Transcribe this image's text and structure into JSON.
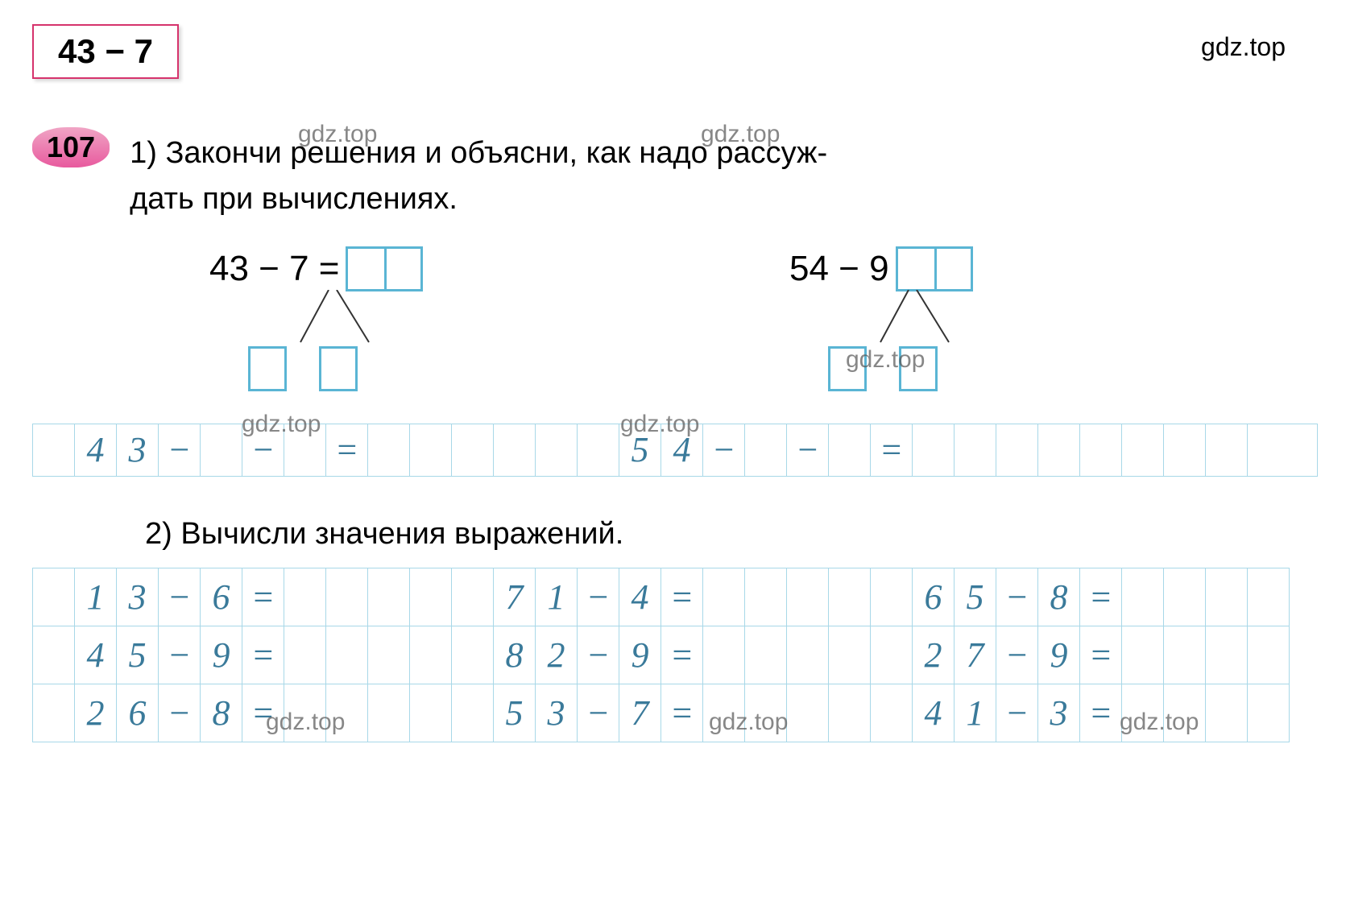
{
  "colors": {
    "header_border": "#d6336c",
    "box_border": "#5ab5d4",
    "grid_line": "#a8d8e8",
    "handwriting": "#3a7a9a",
    "badge_bg": "#e85a9e"
  },
  "header": {
    "title": "43 − 7"
  },
  "watermark": "gdz.top",
  "task": {
    "number": "107",
    "part1_label": "1)",
    "part1_text_line1": "Закончи решения и объясни, как надо рассуж-",
    "part1_text_line2": "дать при вычислениях.",
    "part2_label": "2)",
    "part2_text": "Вычисли значения выражений."
  },
  "decompositions": [
    {
      "expr_left": "43 − 7 ="
    },
    {
      "expr_left": "54 − 9"
    }
  ],
  "grid_row1": {
    "cells": [
      "",
      "4",
      "3",
      "−",
      "",
      "−",
      "",
      "=",
      "",
      "",
      "",
      "",
      "",
      "",
      "5",
      "4",
      "−",
      "",
      "−",
      "",
      "=",
      "",
      "",
      "",
      "",
      "",
      "",
      "",
      "",
      ""
    ]
  },
  "expressions_table": {
    "rows": [
      [
        "",
        "1",
        "3",
        "−",
        "6",
        "=",
        "",
        "",
        "",
        "",
        "",
        "7",
        "1",
        "−",
        "4",
        "=",
        "",
        "",
        "",
        "",
        "",
        "6",
        "5",
        "−",
        "8",
        "=",
        "",
        "",
        "",
        ""
      ],
      [
        "",
        "4",
        "5",
        "−",
        "9",
        "=",
        "",
        "",
        "",
        "",
        "",
        "8",
        "2",
        "−",
        "9",
        "=",
        "",
        "",
        "",
        "",
        "",
        "2",
        "7",
        "−",
        "9",
        "=",
        "",
        "",
        "",
        ""
      ],
      [
        "",
        "2",
        "6",
        "−",
        "8",
        "=",
        "",
        "",
        "",
        "",
        "",
        "5",
        "3",
        "−",
        "7",
        "=",
        "",
        "",
        "",
        "",
        "",
        "4",
        "1",
        "−",
        "3",
        "=",
        "",
        "",
        "",
        ""
      ]
    ]
  }
}
